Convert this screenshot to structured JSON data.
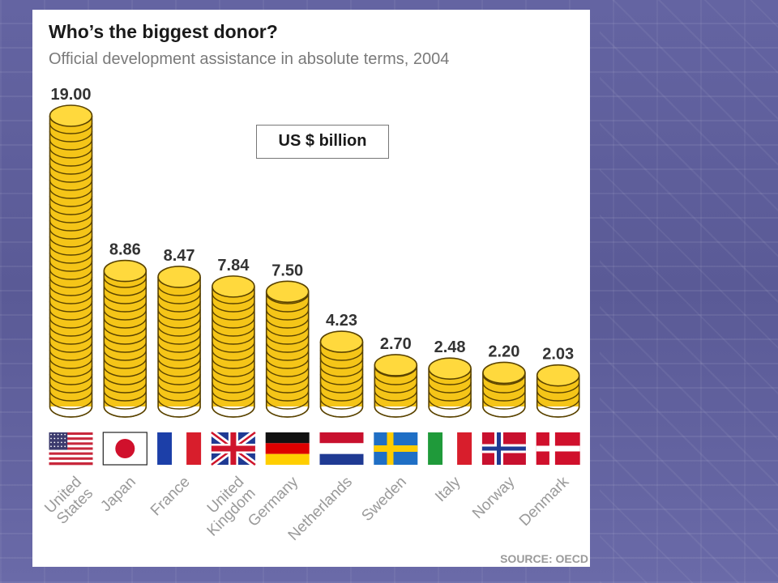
{
  "chart_data": {
    "type": "bar",
    "title": "Who’s the biggest donor?",
    "subtitle": "Official development assistance in absolute terms, 2004",
    "unit_label": "US $ billion",
    "source": "SOURCE: OECD",
    "categories": [
      [
        "United",
        "States"
      ],
      [
        "Japan"
      ],
      [
        "France"
      ],
      [
        "United",
        "Kingdom"
      ],
      [
        "Germany"
      ],
      [
        "Netherlands"
      ],
      [
        "Sweden"
      ],
      [
        "Italy"
      ],
      [
        "Norway"
      ],
      [
        "Denmark"
      ]
    ],
    "values": [
      19.0,
      8.86,
      8.47,
      7.84,
      7.5,
      4.23,
      2.7,
      2.48,
      2.2,
      2.03
    ],
    "value_labels": [
      "19.00",
      "8.86",
      "8.47",
      "7.84",
      "7.50",
      "4.23",
      "2.70",
      "2.48",
      "2.20",
      "2.03"
    ],
    "flags": [
      "us-flag",
      "japan-flag",
      "france-flag",
      "uk-flag",
      "germany-flag",
      "netherlands-flag",
      "sweden-flag",
      "italy-flag",
      "norway-flag",
      "denmark-flag"
    ],
    "bar_style": "stacked-gold-coins",
    "colors": {
      "coin": "#f5c518",
      "coin_top": "#ffd93d",
      "coin_edge": "#5a4300"
    },
    "ylim": [
      0,
      19
    ]
  }
}
